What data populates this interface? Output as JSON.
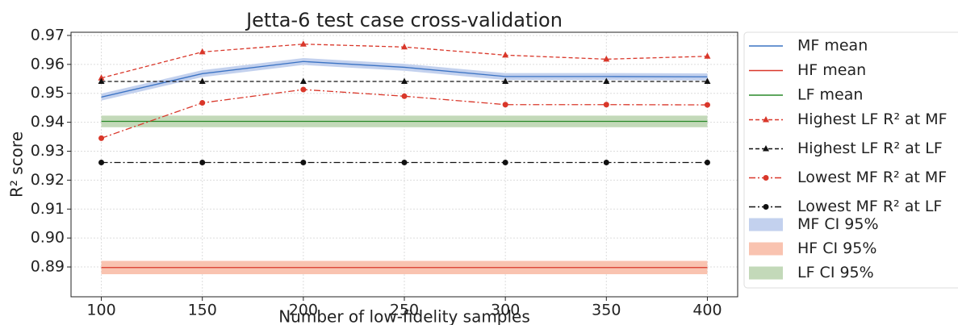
{
  "chart_data": {
    "type": "line",
    "title": "Jetta-6 test case cross-validation",
    "xlabel": "Number of low-fidelity samples",
    "ylabel": "R² score",
    "x": [
      100,
      150,
      200,
      250,
      300,
      350,
      400
    ],
    "xlim": [
      85,
      415
    ],
    "ylim": [
      0.8797,
      0.9711
    ],
    "xticks": [
      100,
      150,
      200,
      250,
      300,
      350,
      400
    ],
    "yticks": [
      0.89,
      {
        "value": 0.9,
        "label": "0.90"
      },
      0.91,
      0.92,
      0.93,
      0.94,
      0.95,
      0.96,
      0.97
    ],
    "grid": true,
    "series": [
      {
        "name": "MF mean",
        "color": "#3b73c4",
        "linestyle": "solid",
        "marker": "none",
        "values": [
          0.9487,
          0.9568,
          0.961,
          0.959,
          0.9558,
          0.9558,
          0.9557
        ]
      },
      {
        "name": "HF mean",
        "color": "#d9372a",
        "linestyle": "solid",
        "marker": "none",
        "values": [
          0.8898,
          0.8898,
          0.8898,
          0.8898,
          0.8898,
          0.8898,
          0.8898
        ]
      },
      {
        "name": "LF mean",
        "color": "#2a8a2a",
        "linestyle": "solid",
        "marker": "none",
        "values": [
          0.9403,
          0.9403,
          0.9403,
          0.9403,
          0.9403,
          0.9403,
          0.9403
        ]
      },
      {
        "name": "Highest LF R² at MF",
        "color": "#d9372a",
        "linestyle": "dashed",
        "marker": "triangle",
        "values": [
          0.9553,
          0.9643,
          0.967,
          0.966,
          0.9632,
          0.9618,
          0.9628
        ]
      },
      {
        "name": "Highest LF R² at LF",
        "color": "#111111",
        "linestyle": "dashed",
        "marker": "triangle",
        "values": [
          0.9541,
          0.9541,
          0.9541,
          0.9541,
          0.9541,
          0.9541,
          0.9541
        ]
      },
      {
        "name": "Lowest MF R² at MF",
        "color": "#d9372a",
        "linestyle": "dashdot",
        "marker": "circle",
        "values": [
          0.9345,
          0.9467,
          0.9513,
          0.949,
          0.9461,
          0.9461,
          0.946
        ]
      },
      {
        "name": "Lowest MF R² at LF",
        "color": "#111111",
        "linestyle": "dashdot",
        "marker": "circle",
        "values": [
          0.9261,
          0.9261,
          0.9261,
          0.9261,
          0.9261,
          0.9261,
          0.9261
        ]
      }
    ],
    "bands": [
      {
        "name": "MF CI 95%",
        "color": "#c3d1ee",
        "lower": [
          0.9475,
          0.9556,
          0.9598,
          0.9578,
          0.9546,
          0.9546,
          0.9545
        ],
        "upper": [
          0.9499,
          0.958,
          0.9622,
          0.9602,
          0.957,
          0.957,
          0.9569
        ]
      },
      {
        "name": "HF CI 95%",
        "color": "#f9c3b0",
        "lower": [
          0.8875,
          0.8875,
          0.8875,
          0.8875,
          0.8875,
          0.8875,
          0.8875
        ],
        "upper": [
          0.8921,
          0.8921,
          0.8921,
          0.8921,
          0.8921,
          0.8921,
          0.8921
        ]
      },
      {
        "name": "LF CI 95%",
        "color": "#c3d9b9",
        "lower": [
          0.9383,
          0.9383,
          0.9383,
          0.9383,
          0.9383,
          0.9383,
          0.9383
        ],
        "upper": [
          0.9423,
          0.9423,
          0.9423,
          0.9423,
          0.9423,
          0.9423,
          0.9423
        ]
      }
    ]
  }
}
